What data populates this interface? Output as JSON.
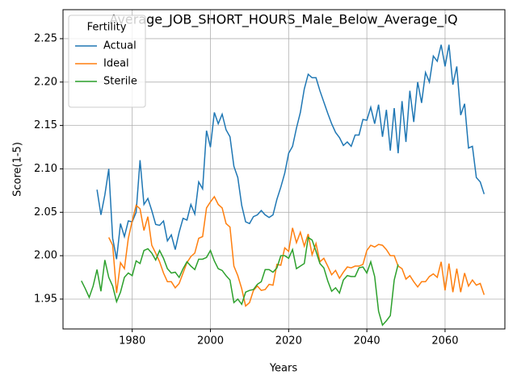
{
  "chart_data": {
    "type": "line",
    "title": "Average_JOB_SHORT_HOURS_Male_Below_Average_IQ",
    "x_label": "Years",
    "y_label": "Score(1-5)",
    "legend_title": "Fertility",
    "legend_position": "upper left",
    "grid": true,
    "xlim": [
      1962.3,
      2075.3
    ],
    "ylim": [
      1.9156,
      2.2834
    ],
    "xticks": [
      1980,
      2000,
      2020,
      2040,
      2060
    ],
    "yticks": [
      1.95,
      {
        "value": 2,
        "label": "2.00"
      },
      2.05,
      {
        "value": 2.1,
        "label": "2.10"
      },
      2.15,
      {
        "value": 2.2,
        "label": "2.20"
      },
      2.25
    ],
    "x": [
      1967,
      1968,
      1969,
      1970,
      1971,
      1972,
      1973,
      1974,
      1975,
      1976,
      1977,
      1978,
      1979,
      1980,
      1981,
      1982,
      1983,
      1984,
      1985,
      1986,
      1987,
      1988,
      1989,
      1990,
      1991,
      1992,
      1993,
      1994,
      1995,
      1996,
      1997,
      1998,
      1999,
      2000,
      2001,
      2002,
      2003,
      2004,
      2005,
      2006,
      2007,
      2008,
      2009,
      2010,
      2011,
      2012,
      2013,
      2014,
      2015,
      2016,
      2017,
      2018,
      2019,
      2020,
      2021,
      2022,
      2023,
      2024,
      2025,
      2026,
      2027,
      2028,
      2029,
      2030,
      2031,
      2032,
      2033,
      2034,
      2035,
      2036,
      2037,
      2038,
      2039,
      2040,
      2041,
      2042,
      2043,
      2044,
      2045,
      2046,
      2047,
      2048,
      2049,
      2050,
      2051,
      2052,
      2053,
      2054,
      2055,
      2056,
      2057,
      2058,
      2059,
      2060,
      2061,
      2062,
      2063,
      2064,
      2065,
      2066,
      2067,
      2068,
      2069,
      2070
    ],
    "series": [
      {
        "name": "Actual",
        "color": "#1f77b4",
        "values": [
          null,
          null,
          null,
          null,
          2.076,
          2.047,
          2.07,
          2.1,
          2.02,
          1.996,
          2.037,
          2.022,
          2.04,
          2.039,
          2.05,
          2.11,
          2.059,
          2.066,
          2.052,
          2.036,
          2.035,
          2.04,
          2.017,
          2.024,
          2.007,
          2.027,
          2.043,
          2.041,
          2.059,
          2.048,
          2.085,
          2.077,
          2.144,
          2.125,
          2.165,
          2.152,
          2.163,
          2.145,
          2.137,
          2.103,
          2.09,
          2.058,
          2.039,
          2.037,
          2.045,
          2.047,
          2.052,
          2.047,
          2.044,
          2.047,
          2.065,
          2.079,
          2.095,
          2.118,
          2.126,
          2.147,
          2.165,
          2.192,
          2.209,
          2.205,
          2.205,
          2.19,
          2.177,
          2.164,
          2.152,
          2.142,
          2.136,
          2.127,
          2.131,
          2.126,
          2.139,
          2.139,
          2.157,
          2.156,
          2.171,
          2.152,
          2.174,
          2.137,
          2.168,
          2.121,
          2.17,
          2.118,
          2.178,
          2.131,
          2.19,
          2.154,
          2.2,
          2.176,
          2.211,
          2.2,
          2.23,
          2.224,
          2.243,
          2.218,
          2.243,
          2.197,
          2.218,
          2.162,
          2.175,
          2.124,
          2.126,
          2.09,
          2.085,
          2.071
        ]
      },
      {
        "name": "Ideal",
        "color": "#ff7f0e",
        "values": [
          null,
          null,
          null,
          null,
          null,
          null,
          null,
          2.021,
          2.012,
          1.957,
          1.992,
          1.985,
          2.02,
          2.04,
          2.058,
          2.054,
          2.029,
          2.045,
          2.012,
          2.003,
          1.993,
          1.98,
          1.97,
          1.97,
          1.963,
          1.968,
          1.98,
          1.992,
          1.999,
          2.003,
          2.02,
          2.022,
          2.055,
          2.062,
          2.068,
          2.059,
          2.055,
          2.037,
          2.033,
          1.988,
          1.977,
          1.962,
          1.942,
          1.946,
          1.96,
          1.965,
          1.96,
          1.961,
          1.967,
          1.966,
          1.99,
          1.989,
          2.009,
          2.005,
          2.032,
          2.015,
          2.027,
          2.011,
          2.025,
          2.001,
          2.014,
          1.993,
          1.997,
          1.988,
          1.978,
          1.983,
          1.974,
          1.981,
          1.987,
          1.986,
          1.988,
          1.988,
          1.99,
          2.006,
          2.012,
          2.01,
          2.013,
          2.012,
          2.007,
          2.0,
          2.0,
          1.988,
          1.985,
          1.973,
          1.977,
          1.97,
          1.964,
          1.97,
          1.97,
          1.976,
          1.979,
          1.975,
          1.993,
          1.96,
          1.991,
          1.958,
          1.985,
          1.958,
          1.98,
          1.965,
          1.972,
          1.966,
          1.968,
          1.955
        ]
      },
      {
        "name": "Sterile",
        "color": "#2ca02c",
        "values": [
          1.971,
          1.962,
          1.952,
          1.965,
          1.984,
          1.959,
          1.995,
          1.975,
          1.965,
          1.947,
          1.958,
          1.975,
          1.98,
          1.977,
          1.994,
          1.991,
          2.006,
          2.008,
          2.003,
          1.995,
          2.006,
          1.997,
          1.985,
          1.98,
          1.981,
          1.975,
          1.985,
          1.993,
          1.988,
          1.984,
          1.996,
          1.996,
          1.998,
          2.006,
          1.994,
          1.985,
          1.983,
          1.977,
          1.972,
          1.946,
          1.95,
          1.944,
          1.958,
          1.96,
          1.961,
          1.967,
          1.97,
          1.984,
          1.984,
          1.981,
          1.986,
          2.0,
          2.0,
          1.997,
          2.007,
          1.985,
          1.988,
          1.991,
          2.021,
          2.018,
          2.005,
          1.991,
          1.986,
          1.971,
          1.959,
          1.963,
          1.957,
          1.972,
          1.977,
          1.976,
          1.976,
          1.986,
          1.987,
          1.98,
          1.993,
          1.976,
          1.936,
          1.92,
          1.925,
          1.931,
          1.972,
          1.99,
          null,
          null,
          null,
          null,
          null,
          null,
          null,
          null,
          null,
          null,
          null,
          null,
          null,
          null,
          null,
          null,
          null,
          null,
          null,
          null,
          null,
          null
        ]
      }
    ]
  }
}
